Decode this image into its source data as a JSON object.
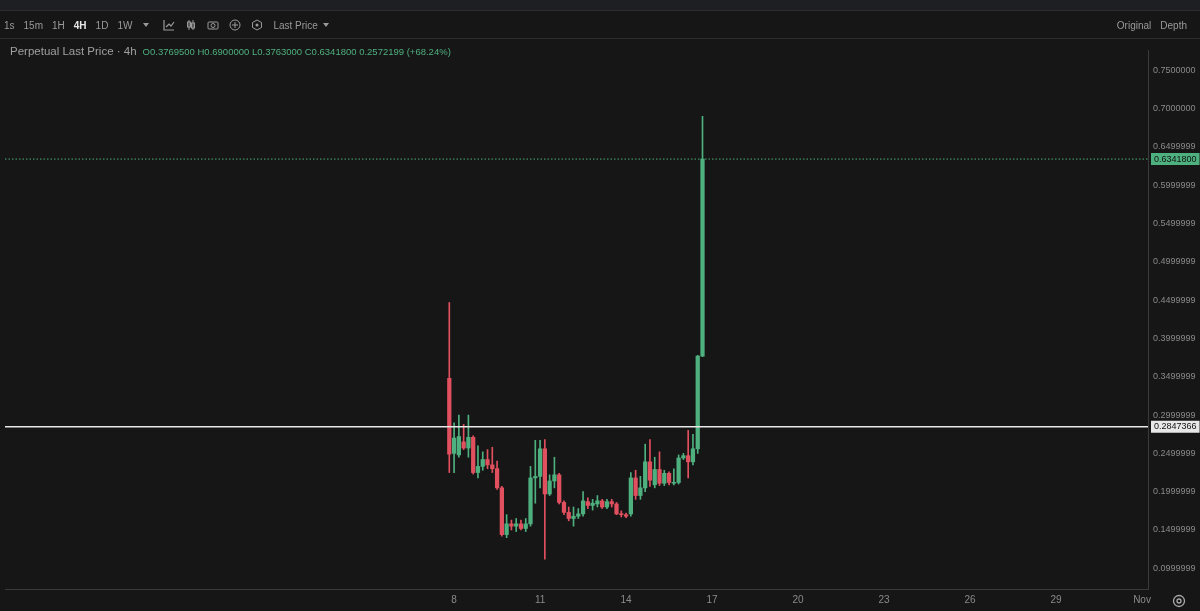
{
  "chart_data": {
    "type": "candlestick",
    "title": "Perpetual Last Price · 4h",
    "annotations": [
      "O0.3769500 H0.6900000 L0.3763000 C0.6341800 0.2572199 (+68.24%)",
      "1s",
      "15m",
      "1H",
      "4H",
      "1D",
      "1W",
      "Last Price",
      "Original",
      "Depth"
    ],
    "x": [
      "--10-07T20:00",
      "--10-08T00:00",
      "--10-08T04:00",
      "--10-08T08:00",
      "--10-08T12:00",
      "--10-08T16:00",
      "--10-08T20:00",
      "--10-09T00:00",
      "--10-09T04:00",
      "--10-09T08:00",
      "--10-09T12:00",
      "--10-09T16:00",
      "--10-09T20:00",
      "--10-10T00:00",
      "--10-10T04:00",
      "--10-10T08:00",
      "--10-10T12:00",
      "--10-10T16:00",
      "--10-10T20:00",
      "--10-11T00:00",
      "--10-11T04:00",
      "--10-11T08:00",
      "--10-11T12:00",
      "--10-11T16:00",
      "--10-11T20:00",
      "--10-12T00:00",
      "--10-12T04:00",
      "--10-12T08:00",
      "--10-12T12:00",
      "--10-12T16:00",
      "--10-12T20:00",
      "--10-13T00:00",
      "--10-13T04:00",
      "--10-13T08:00",
      "--10-13T12:00",
      "--10-13T16:00",
      "--10-13T20:00",
      "--10-14T00:00",
      "--10-14T04:00",
      "--10-14T08:00",
      "--10-14T12:00",
      "--10-14T16:00",
      "--10-14T20:00",
      "--10-15T00:00",
      "--10-15T04:00",
      "--10-15T08:00",
      "--10-15T12:00",
      "--10-15T16:00",
      "--10-15T20:00",
      "--10-16T00:00",
      "--10-16T04:00",
      "--10-16T08:00",
      "--10-16T12:00",
      "--10-16T16:00"
    ],
    "ohlc": [
      [
        0.348,
        0.447,
        0.225,
        0.249
      ],
      [
        0.25,
        0.29,
        0.225,
        0.27
      ],
      [
        0.248,
        0.3,
        0.245,
        0.272
      ],
      [
        0.265,
        0.288,
        0.255,
        0.257
      ],
      [
        0.257,
        0.3,
        0.245,
        0.271
      ],
      [
        0.271,
        0.273,
        0.223,
        0.225
      ],
      [
        0.225,
        0.26,
        0.218,
        0.233
      ],
      [
        0.233,
        0.252,
        0.228,
        0.242
      ],
      [
        0.242,
        0.255,
        0.23,
        0.235
      ],
      [
        0.235,
        0.258,
        0.225,
        0.23
      ],
      [
        0.23,
        0.24,
        0.203,
        0.205
      ],
      [
        0.205,
        0.207,
        0.142,
        0.144
      ],
      [
        0.144,
        0.17,
        0.14,
        0.158
      ],
      [
        0.158,
        0.163,
        0.15,
        0.155
      ],
      [
        0.155,
        0.165,
        0.148,
        0.158
      ],
      [
        0.158,
        0.163,
        0.15,
        0.152
      ],
      [
        0.152,
        0.165,
        0.148,
        0.158
      ],
      [
        0.158,
        0.233,
        0.155,
        0.218
      ],
      [
        0.218,
        0.267,
        0.185,
        0.22
      ],
      [
        0.22,
        0.267,
        0.205,
        0.256
      ],
      [
        0.256,
        0.268,
        0.112,
        0.197
      ],
      [
        0.197,
        0.222,
        0.195,
        0.214
      ],
      [
        0.214,
        0.245,
        0.205,
        0.222
      ],
      [
        0.222,
        0.224,
        0.184,
        0.186
      ],
      [
        0.186,
        0.188,
        0.17,
        0.173
      ],
      [
        0.173,
        0.18,
        0.162,
        0.165
      ],
      [
        0.165,
        0.18,
        0.155,
        0.168
      ],
      [
        0.168,
        0.178,
        0.165,
        0.171
      ],
      [
        0.171,
        0.2,
        0.168,
        0.188
      ],
      [
        0.187,
        0.192,
        0.178,
        0.182
      ],
      [
        0.182,
        0.19,
        0.176,
        0.185
      ],
      [
        0.184,
        0.195,
        0.18,
        0.188
      ],
      [
        0.188,
        0.19,
        0.178,
        0.18
      ],
      [
        0.18,
        0.19,
        0.178,
        0.187
      ],
      [
        0.187,
        0.19,
        0.18,
        0.184
      ],
      [
        0.184,
        0.186,
        0.17,
        0.171
      ],
      [
        0.171,
        0.175,
        0.167,
        0.17
      ],
      [
        0.17,
        0.172,
        0.166,
        0.168
      ],
      [
        0.171,
        0.225,
        0.168,
        0.218
      ],
      [
        0.218,
        0.228,
        0.19,
        0.195
      ],
      [
        0.195,
        0.22,
        0.19,
        0.205
      ],
      [
        0.205,
        0.262,
        0.2,
        0.239
      ],
      [
        0.239,
        0.268,
        0.207,
        0.215
      ],
      [
        0.209,
        0.245,
        0.205,
        0.229
      ],
      [
        0.229,
        0.252,
        0.208,
        0.211
      ],
      [
        0.211,
        0.228,
        0.208,
        0.224
      ],
      [
        0.224,
        0.226,
        0.209,
        0.212
      ],
      [
        0.211,
        0.23,
        0.209,
        0.212
      ],
      [
        0.212,
        0.248,
        0.21,
        0.244
      ],
      [
        0.244,
        0.25,
        0.242,
        0.247
      ],
      [
        0.247,
        0.28,
        0.218,
        0.239
      ],
      [
        0.239,
        0.275,
        0.235,
        0.256
      ],
      [
        0.256,
        0.378,
        0.25,
        0.377
      ],
      [
        0.37695,
        0.69,
        0.3763,
        0.63418
      ]
    ],
    "colors": [
      "#e0505f",
      "#4fb07f",
      "#4fb07f",
      "#e0505f",
      "#4fb07f",
      "#e0505f",
      "#4fb07f",
      "#4fb07f",
      "#e0505f",
      "#e0505f",
      "#e0505f",
      "#e0505f",
      "#4fb07f",
      "#e0505f",
      "#4fb07f",
      "#e0505f",
      "#4fb07f",
      "#4fb07f",
      "#4fb07f",
      "#4fb07f",
      "#e0505f",
      "#4fb07f",
      "#4fb07f",
      "#e0505f",
      "#e0505f",
      "#e0505f",
      "#4fb07f",
      "#4fb07f",
      "#4fb07f",
      "#e0505f",
      "#4fb07f",
      "#4fb07f",
      "#e0505f",
      "#4fb07f",
      "#e0505f",
      "#e0505f",
      "#e0505f",
      "#e0505f",
      "#4fb07f",
      "#e0505f",
      "#4fb07f",
      "#4fb07f",
      "#e0505f",
      "#4fb07f",
      "#e0505f",
      "#4fb07f",
      "#e0505f",
      "#4fb07f",
      "#4fb07f",
      "#4fb07f",
      "#e0505f",
      "#4fb07f",
      "#4fb07f",
      "#4fb07f"
    ],
    "xlim": [
      "--09-22T08:00",
      "--11-01T05:00"
    ],
    "xticks": [
      {
        "value": "--10-08",
        "label": "8"
      },
      {
        "value": "--10-11",
        "label": "11"
      },
      {
        "value": "--10-14",
        "label": "14"
      },
      {
        "value": "--10-17",
        "label": "17"
      },
      {
        "value": "--10-20",
        "label": "20"
      },
      {
        "value": "--10-23",
        "label": "23"
      },
      {
        "value": "--10-26",
        "label": "26"
      },
      {
        "value": "--10-29",
        "label": "29"
      },
      {
        "value": "--11-01",
        "label": "Nov"
      }
    ],
    "ylim": [
      0.073,
      0.776
    ],
    "yticks": [
      0.0999999,
      0.1499999,
      0.1999999,
      0.2499999,
      0.2999999,
      0.3499999,
      0.3999999,
      0.4499999,
      0.4999999,
      0.5499999,
      0.5999999,
      0.6499999,
      {
        "value": 0.7,
        "label": "0.7000000"
      },
      {
        "value": 0.75,
        "label": "0.7500000"
      }
    ],
    "ref_lines": [
      {
        "axis": "y",
        "value": 0.63418,
        "label": "0.6341800",
        "color": "#4fb07f",
        "line_style": "dotted"
      },
      {
        "axis": "y",
        "value": 0.2847366,
        "label": "0.2847366",
        "color": "#e8e8e8",
        "line_style": "solid"
      }
    ]
  }
}
